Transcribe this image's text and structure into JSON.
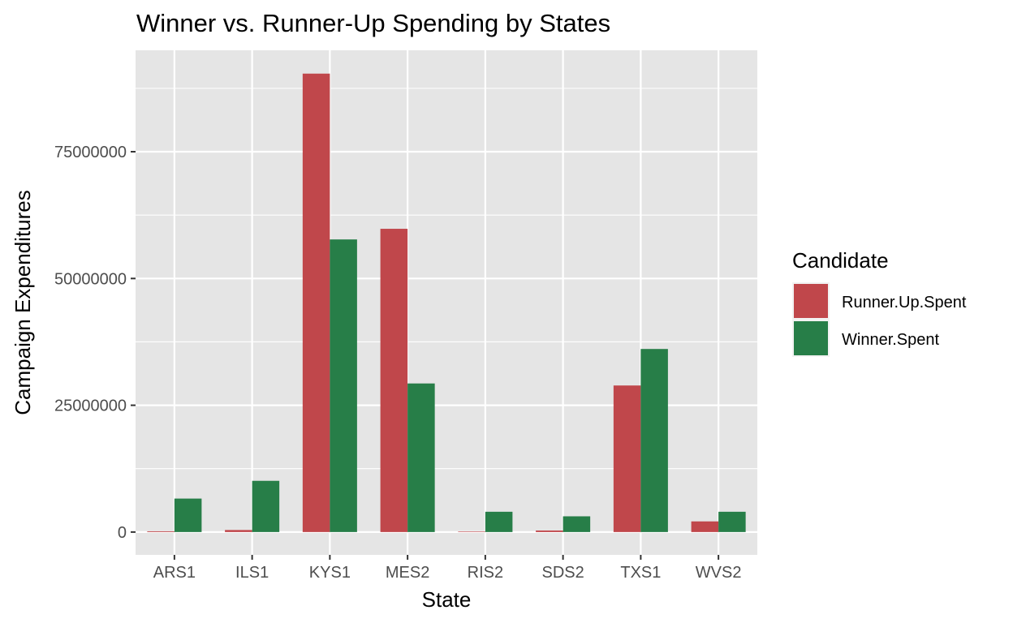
{
  "chart_data": {
    "type": "bar",
    "title": "Winner vs. Runner-Up Spending by States",
    "xlabel": "State",
    "ylabel": "Campaign Expenditures",
    "categories": [
      "ARS1",
      "ILS1",
      "KYS1",
      "MES2",
      "RIS2",
      "SDS2",
      "TXS1",
      "WVS2"
    ],
    "series": [
      {
        "name": "Runner.Up.Spent",
        "color": "#c0474b",
        "values": [
          150000,
          400000,
          90400000,
          59800000,
          100000,
          300000,
          28900000,
          2100000
        ]
      },
      {
        "name": "Winner.Spent",
        "color": "#277e48",
        "values": [
          6600000,
          10100000,
          57700000,
          29300000,
          4000000,
          3100000,
          36100000,
          4000000
        ]
      }
    ],
    "legend": {
      "title": "Candidate",
      "position": "right"
    },
    "ylim": [
      -4500000,
      95000000
    ],
    "yticks": [
      0,
      25000000,
      50000000,
      75000000
    ],
    "ytick_labels": [
      "0",
      "25000000",
      "50000000",
      "75000000"
    ],
    "grid": true,
    "panel_background": "#e5e5e5",
    "grid_color": "#ffffff"
  }
}
